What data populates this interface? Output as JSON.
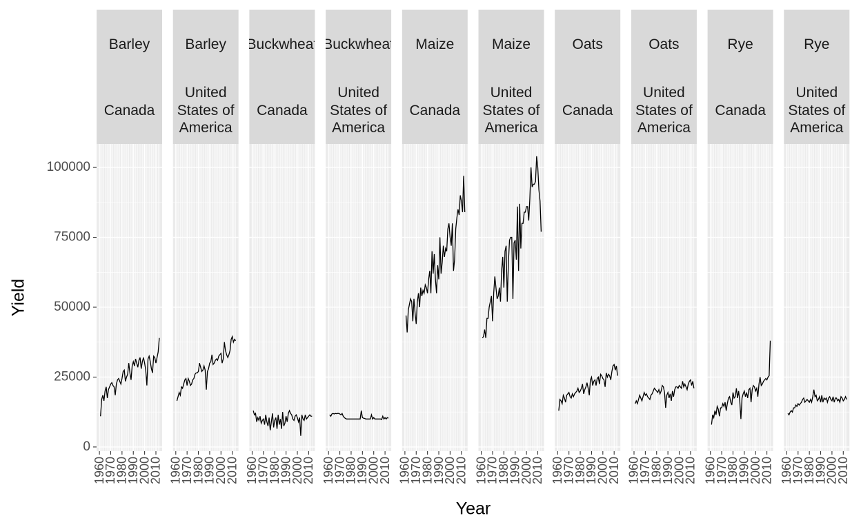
{
  "chart_data": {
    "type": "line",
    "x_label": "Year",
    "y_label": "Yield",
    "color": "#000000",
    "grid": true,
    "x": [
      1961,
      1962,
      1963,
      1964,
      1965,
      1966,
      1967,
      1968,
      1969,
      1970,
      1971,
      1972,
      1973,
      1974,
      1975,
      1976,
      1977,
      1978,
      1979,
      1980,
      1981,
      1982,
      1983,
      1984,
      1985,
      1986,
      1987,
      1988,
      1989,
      1990,
      1991,
      1992,
      1993,
      1994,
      1995,
      1996,
      1997,
      1998,
      1999,
      2000,
      2001,
      2002,
      2003,
      2004,
      2005,
      2006,
      2007,
      2008,
      2009,
      2010,
      2011,
      2012,
      2013
    ],
    "xlim": [
      1957.5,
      2015.5
    ],
    "xticks": [
      1960,
      1970,
      1980,
      1990,
      2000,
      2010
    ],
    "ylim": [
      -1500,
      108400
    ],
    "yticks": [
      0,
      25000,
      50000,
      75000,
      100000
    ],
    "panels": [
      {
        "crop": "Barley",
        "country": "Canada",
        "values": [
          11000,
          17000,
          18500,
          16500,
          20000,
          21500,
          17500,
          20500,
          21500,
          22500,
          23000,
          22000,
          21500,
          18500,
          22500,
          24000,
          24500,
          23500,
          22500,
          24500,
          27000,
          27500,
          23500,
          25000,
          26000,
          30000,
          26500,
          24000,
          29000,
          30500,
          29000,
          31500,
          30000,
          28500,
          31000,
          32000,
          28000,
          30500,
          32000,
          30000,
          27500,
          22000,
          31500,
          32500,
          30500,
          28000,
          26500,
          32500,
          32000,
          30000,
          32000,
          34000,
          39000
        ]
      },
      {
        "crop": "Barley",
        "country": "United States of America",
        "values": [
          16500,
          18000,
          19500,
          18500,
          21500,
          21000,
          22500,
          24000,
          24500,
          22000,
          24500,
          23500,
          22000,
          22500,
          24000,
          24500,
          26000,
          26500,
          26500,
          27000,
          30000,
          28500,
          27000,
          27500,
          29000,
          27500,
          20500,
          27000,
          28000,
          30000,
          30500,
          33000,
          29500,
          30000,
          31000,
          31500,
          31000,
          32500,
          33000,
          33500,
          30000,
          31500,
          37500,
          34500,
          33000,
          32000,
          33000,
          34500,
          38500,
          39500,
          37500,
          38500,
          38000
        ]
      },
      {
        "crop": "Buckwheat",
        "country": "Canada",
        "values": [
          13000,
          11500,
          12000,
          9000,
          10500,
          9500,
          11000,
          8500,
          9500,
          10000,
          8000,
          11500,
          9000,
          7500,
          10500,
          6000,
          9000,
          12000,
          7000,
          9500,
          10500,
          6500,
          11500,
          8000,
          10000,
          6500,
          12500,
          7500,
          8500,
          11000,
          9000,
          12000,
          13000,
          12000,
          11500,
          10000,
          9500,
          11000,
          11500,
          10500,
          9000,
          10500,
          4000,
          11500,
          10000,
          9500,
          11500,
          10000,
          10500,
          11000,
          11500,
          11000,
          11000
        ]
      },
      {
        "crop": "Buckwheat",
        "country": "United States of America",
        "values": [
          11500,
          11000,
          11800,
          12000,
          11800,
          12000,
          11900,
          12000,
          12000,
          11800,
          11500,
          12000,
          11000,
          10500,
          10200,
          10000,
          10000,
          10000,
          10000,
          10000,
          10000,
          10000,
          10000,
          10000,
          10000,
          10000,
          10000,
          10000,
          13000,
          10500,
          10300,
          10200,
          10000,
          10000,
          10000,
          10000,
          10000,
          11500,
          10000,
          10500,
          10000,
          10000,
          10000,
          10000,
          10000,
          10000,
          9800,
          11000,
          10000,
          10500,
          10000,
          10500,
          10300
        ]
      },
      {
        "crop": "Maize",
        "country": "Canada",
        "values": [
          47000,
          41000,
          49000,
          51000,
          53000,
          52000,
          45000,
          53000,
          48000,
          44000,
          52000,
          55000,
          50000,
          57000,
          54000,
          56000,
          55000,
          58000,
          57000,
          55000,
          60000,
          63000,
          55000,
          70000,
          62000,
          69000,
          60000,
          55000,
          65000,
          60000,
          75000,
          62000,
          66000,
          72000,
          68000,
          71000,
          70000,
          78000,
          80000,
          75000,
          72000,
          80000,
          63000,
          67000,
          78000,
          82000,
          85000,
          83000,
          90000,
          88000,
          84000,
          97000,
          84000
        ]
      },
      {
        "crop": "Maize",
        "country": "United States of America",
        "values": [
          39000,
          39500,
          42000,
          39000,
          46000,
          46000,
          50000,
          52000,
          54000,
          45000,
          55000,
          61000,
          57000,
          53000,
          54000,
          57000,
          52000,
          63000,
          68000,
          57000,
          70000,
          72000,
          52000,
          66000,
          74000,
          75000,
          75000,
          53000,
          73000,
          74000,
          67000,
          86000,
          63000,
          87000,
          71000,
          80000,
          80000,
          84000,
          84000,
          86000,
          86000,
          81000,
          89000,
          100000,
          93000,
          94000,
          94000,
          95000,
          104000,
          100000,
          92000,
          88000,
          77000
        ]
      },
      {
        "crop": "Oats",
        "country": "Canada",
        "values": [
          13000,
          17000,
          16500,
          15500,
          18500,
          17500,
          16000,
          18500,
          19000,
          19500,
          18000,
          17500,
          19000,
          18000,
          19000,
          19500,
          20000,
          21000,
          19500,
          20000,
          21000,
          22500,
          19000,
          20500,
          21500,
          23000,
          21000,
          18500,
          24000,
          25000,
          22000,
          23500,
          24000,
          22000,
          24500,
          25000,
          22500,
          26000,
          25500,
          24500,
          24000,
          21500,
          26500,
          25000,
          26000,
          25500,
          24000,
          27000,
          29000,
          29500,
          27500,
          29000,
          25500
        ]
      },
      {
        "crop": "Oats",
        "country": "United States of America",
        "values": [
          15500,
          16500,
          15500,
          17000,
          18500,
          17500,
          16500,
          18000,
          19500,
          18500,
          19000,
          18000,
          17500,
          17000,
          18500,
          19000,
          20000,
          21000,
          20500,
          20000,
          19500,
          20500,
          19000,
          20000,
          22000,
          21500,
          19500,
          14000,
          18500,
          19500,
          17500,
          19000,
          16500,
          20000,
          18000,
          20500,
          21500,
          21500,
          21000,
          22000,
          21500,
          21000,
          23500,
          21500,
          22500,
          21500,
          20500,
          22500,
          23500,
          24000,
          22000,
          23500,
          21000
        ]
      },
      {
        "crop": "Rye",
        "country": "Canada",
        "values": [
          8000,
          11500,
          10500,
          13000,
          11500,
          14500,
          13500,
          11000,
          14000,
          14000,
          15500,
          14500,
          16000,
          13000,
          15500,
          17500,
          18000,
          16000,
          15000,
          19500,
          17500,
          18000,
          21000,
          17500,
          20000,
          16500,
          10000,
          17500,
          19000,
          20000,
          18000,
          19500,
          17500,
          20500,
          21000,
          16000,
          20500,
          22000,
          21500,
          20000,
          21000,
          18000,
          22500,
          25000,
          22000,
          22500,
          23500,
          24000,
          24500,
          24000,
          25000,
          25500,
          38000
        ]
      },
      {
        "crop": "Rye",
        "country": "United States of America",
        "values": [
          12000,
          11500,
          12500,
          13000,
          12500,
          14000,
          14000,
          15000,
          14500,
          15500,
          15000,
          15500,
          16000,
          17000,
          17500,
          16000,
          16500,
          17000,
          16500,
          16000,
          17000,
          16000,
          18000,
          20500,
          18000,
          18500,
          16500,
          17000,
          18000,
          16000,
          18500,
          16000,
          17500,
          17000,
          17500,
          16000,
          17500,
          18000,
          17000,
          16500,
          18000,
          16000,
          17500,
          17500,
          16500,
          17000,
          16000,
          18000,
          17500,
          16500,
          17000,
          18000,
          17000
        ]
      }
    ]
  }
}
